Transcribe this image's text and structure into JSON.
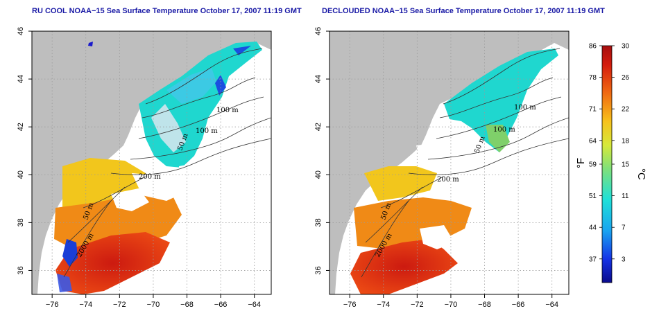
{
  "panels": [
    {
      "id": "left",
      "title": "RU COOL NOAA−15 Sea Surface Temperature October 17, 2007 11:19 GMT",
      "contour_labels": [
        "100 m",
        "100 m",
        "50 m",
        "200 m",
        "50 m",
        "2000 m"
      ]
    },
    {
      "id": "right",
      "title": "DECLOUDED NOAA−15 Sea Surface Temperature October 17, 2007 11:19 GMT",
      "contour_labels": [
        "100 m",
        "100 m",
        "50 m",
        "200 m",
        "50 m",
        "2000 m"
      ]
    }
  ],
  "map_axes": {
    "lon_ticks": [
      "−76",
      "−74",
      "−72",
      "−70",
      "−68",
      "−66",
      "−64"
    ],
    "lat_ticks": [
      "36",
      "38",
      "40",
      "42",
      "44",
      "46"
    ],
    "lon_range": [
      -77.2,
      -63.0
    ],
    "lat_range": [
      35.0,
      46.0
    ],
    "grid": "dotted"
  },
  "colorbar": {
    "fahrenheit_ticks": [
      "86",
      "78",
      "71",
      "64",
      "59",
      "51",
      "44",
      "37"
    ],
    "celsius_ticks": [
      "30",
      "26",
      "22",
      "18",
      "15",
      "11",
      "7",
      "3"
    ],
    "unit_left": "°F",
    "unit_right": "°C",
    "range_c": [
      0,
      30
    ]
  },
  "colors": {
    "land": "#bebebe",
    "cloud": "#ffffff",
    "warm": "#d11a0e",
    "cool": "#1fd7cf",
    "title": "#1a1aa6"
  }
}
